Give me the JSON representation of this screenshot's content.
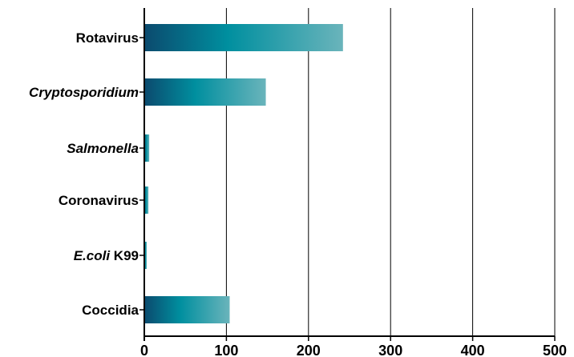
{
  "chart_data": {
    "type": "bar",
    "orientation": "horizontal",
    "categories": [
      {
        "parts": [
          {
            "text": "Rotavirus",
            "italic": false
          }
        ]
      },
      {
        "parts": [
          {
            "text": "Cryptosporidium",
            "italic": true
          }
        ]
      },
      {
        "parts": [
          {
            "text": "Salmonella",
            "italic": true
          }
        ]
      },
      {
        "parts": [
          {
            "text": "Coronavirus",
            "italic": false
          }
        ]
      },
      {
        "parts": [
          {
            "text": "E.coli",
            "italic": true
          },
          {
            "text": " K99",
            "italic": false
          }
        ]
      },
      {
        "parts": [
          {
            "text": "Coccidia",
            "italic": false
          }
        ]
      }
    ],
    "values": [
      242,
      148,
      6,
      5,
      3,
      104
    ],
    "xlim": [
      0,
      500
    ],
    "xticks": [
      "0",
      "100",
      "200",
      "300",
      "400",
      "500"
    ],
    "grid": "vertical",
    "colors": {
      "bar_dark": "#0b4a6e",
      "bar_mid": "#008f9f",
      "bar_light": "#6ab4bb",
      "axis": "#000000"
    }
  }
}
